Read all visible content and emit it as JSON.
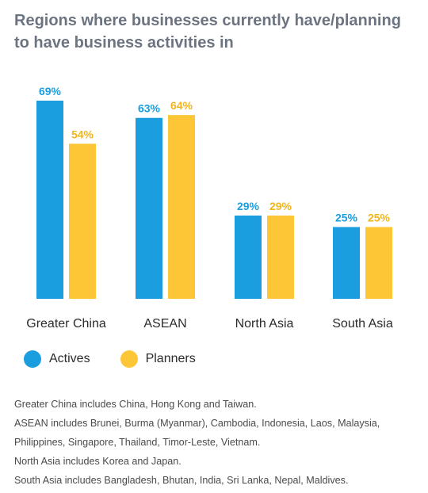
{
  "chart_data": {
    "type": "bar",
    "title": "Regions where businesses currently have/planning to have business activities in",
    "categories": [
      "Greater China",
      "ASEAN",
      "North Asia",
      "South Asia"
    ],
    "series": [
      {
        "name": "Actives",
        "values": [
          69,
          63,
          29,
          25
        ],
        "labels": [
          "69%",
          "63%",
          "29%",
          "25%"
        ],
        "color": "#1a9ee0"
      },
      {
        "name": "Planners",
        "values": [
          54,
          64,
          29,
          25
        ],
        "labels": [
          "54%",
          "64%",
          "29%",
          "25%"
        ],
        "color": "#fcc636"
      }
    ],
    "ylim": [
      0,
      70
    ],
    "grid": false,
    "legend_position": "bottom-left"
  },
  "notes": [
    "Greater China includes China, Hong Kong and Taiwan.",
    "ASEAN includes Brunei, Burma (Myanmar), Cambodia, Indonesia, Laos, Malaysia,",
    "Philippines, Singapore, Thailand, Timor-Leste, Vietnam.",
    "North Asia includes Korea and Japan.",
    "South Asia includes Bangladesh, Bhutan, India, Sri Lanka, Nepal, Maldives."
  ]
}
